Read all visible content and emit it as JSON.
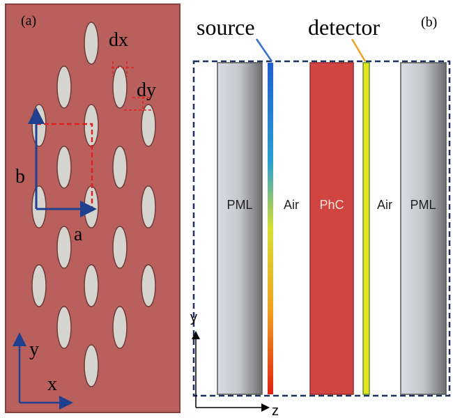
{
  "panel_a": {
    "label": "(a)",
    "dx": "dx",
    "dy": "dy",
    "b": "b",
    "a": "a",
    "axis_y": "y",
    "axis_x": "x"
  },
  "panel_b": {
    "label": "(b)",
    "source": "source",
    "detector": "detector",
    "regions": [
      "PML",
      "Air",
      "PhC",
      "Air",
      "PML"
    ],
    "axis_y": "y",
    "axis_z": "z"
  }
}
